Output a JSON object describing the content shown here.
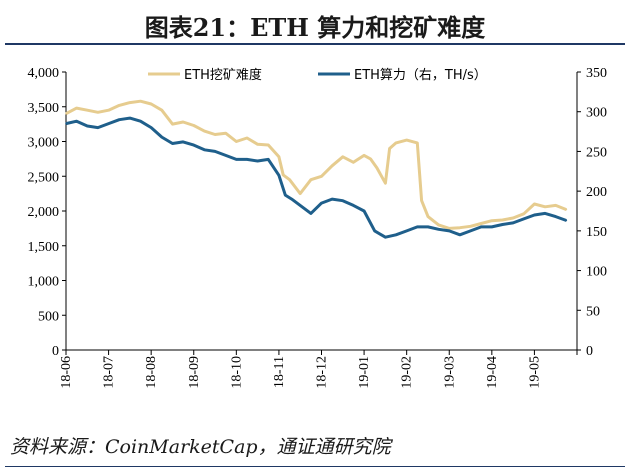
{
  "page": {
    "title": "图表21：ETH 算力和挖矿难度",
    "source": "资料来源：CoinMarketCap，通证通研究院"
  },
  "chart_data": {
    "type": "line",
    "title": "图表21：ETH 算力和挖矿难度",
    "x_ticks": [
      "18-06",
      "18-07",
      "18-08",
      "18-09",
      "18-10",
      "18-11",
      "18-12",
      "19-01",
      "19-02",
      "19-03",
      "19-04",
      "19-05"
    ],
    "y_left": {
      "ylim": [
        0,
        4000
      ],
      "ticks": [
        "0",
        "500",
        "1,000",
        "1,500",
        "2,000",
        "2,500",
        "3,000",
        "3,500",
        "4,000"
      ]
    },
    "y_right": {
      "ylim": [
        0,
        350
      ],
      "ticks": [
        "0",
        "50",
        "100",
        "150",
        "200",
        "250",
        "300",
        "350"
      ]
    },
    "legend_position": "top",
    "grid": false,
    "series": [
      {
        "name": "ETH挖矿难度",
        "axis": "left",
        "color": "#e6cc8f",
        "x": [
          0,
          0.25,
          0.5,
          0.75,
          1,
          1.25,
          1.5,
          1.75,
          2,
          2.25,
          2.5,
          2.75,
          3,
          3.25,
          3.5,
          3.75,
          4,
          4.25,
          4.5,
          4.75,
          5,
          5.1,
          5.25,
          5.5,
          5.75,
          6,
          6.25,
          6.5,
          6.75,
          7,
          7.15,
          7.3,
          7.5,
          7.6,
          7.75,
          8,
          8.25,
          8.35,
          8.5,
          8.75,
          9,
          9.25,
          9.5,
          9.75,
          10,
          10.25,
          10.5,
          10.75,
          11,
          11.25,
          11.5,
          11.75
        ],
        "values": [
          3400,
          3480,
          3450,
          3420,
          3450,
          3520,
          3560,
          3580,
          3540,
          3450,
          3250,
          3280,
          3230,
          3150,
          3100,
          3120,
          3000,
          3050,
          2960,
          2950,
          2780,
          2520,
          2450,
          2250,
          2450,
          2500,
          2650,
          2780,
          2700,
          2800,
          2750,
          2620,
          2400,
          2900,
          2980,
          3020,
          2980,
          2150,
          1920,
          1800,
          1750,
          1760,
          1780,
          1820,
          1860,
          1870,
          1900,
          1960,
          2100,
          2060,
          2080,
          2020
        ]
      },
      {
        "name": "ETH算力（右，TH/s）",
        "axis": "right",
        "color": "#1f5f8b",
        "x": [
          0,
          0.25,
          0.5,
          0.75,
          1,
          1.25,
          1.5,
          1.75,
          2,
          2.25,
          2.5,
          2.75,
          3,
          3.25,
          3.5,
          3.75,
          4,
          4.25,
          4.5,
          4.75,
          5,
          5.15,
          5.3,
          5.5,
          5.75,
          6,
          6.25,
          6.5,
          6.75,
          7,
          7.25,
          7.5,
          7.75,
          8,
          8.25,
          8.5,
          8.75,
          9,
          9.25,
          9.5,
          9.75,
          10,
          10.25,
          10.5,
          10.75,
          11,
          11.25,
          11.5,
          11.75
        ],
        "values": [
          285,
          288,
          282,
          280,
          285,
          290,
          292,
          288,
          280,
          268,
          260,
          262,
          258,
          252,
          250,
          245,
          240,
          240,
          238,
          240,
          220,
          195,
          190,
          182,
          172,
          185,
          190,
          188,
          182,
          175,
          150,
          142,
          145,
          150,
          155,
          155,
          152,
          150,
          145,
          150,
          155,
          155,
          158,
          160,
          165,
          170,
          172,
          168,
          163
        ]
      }
    ]
  }
}
